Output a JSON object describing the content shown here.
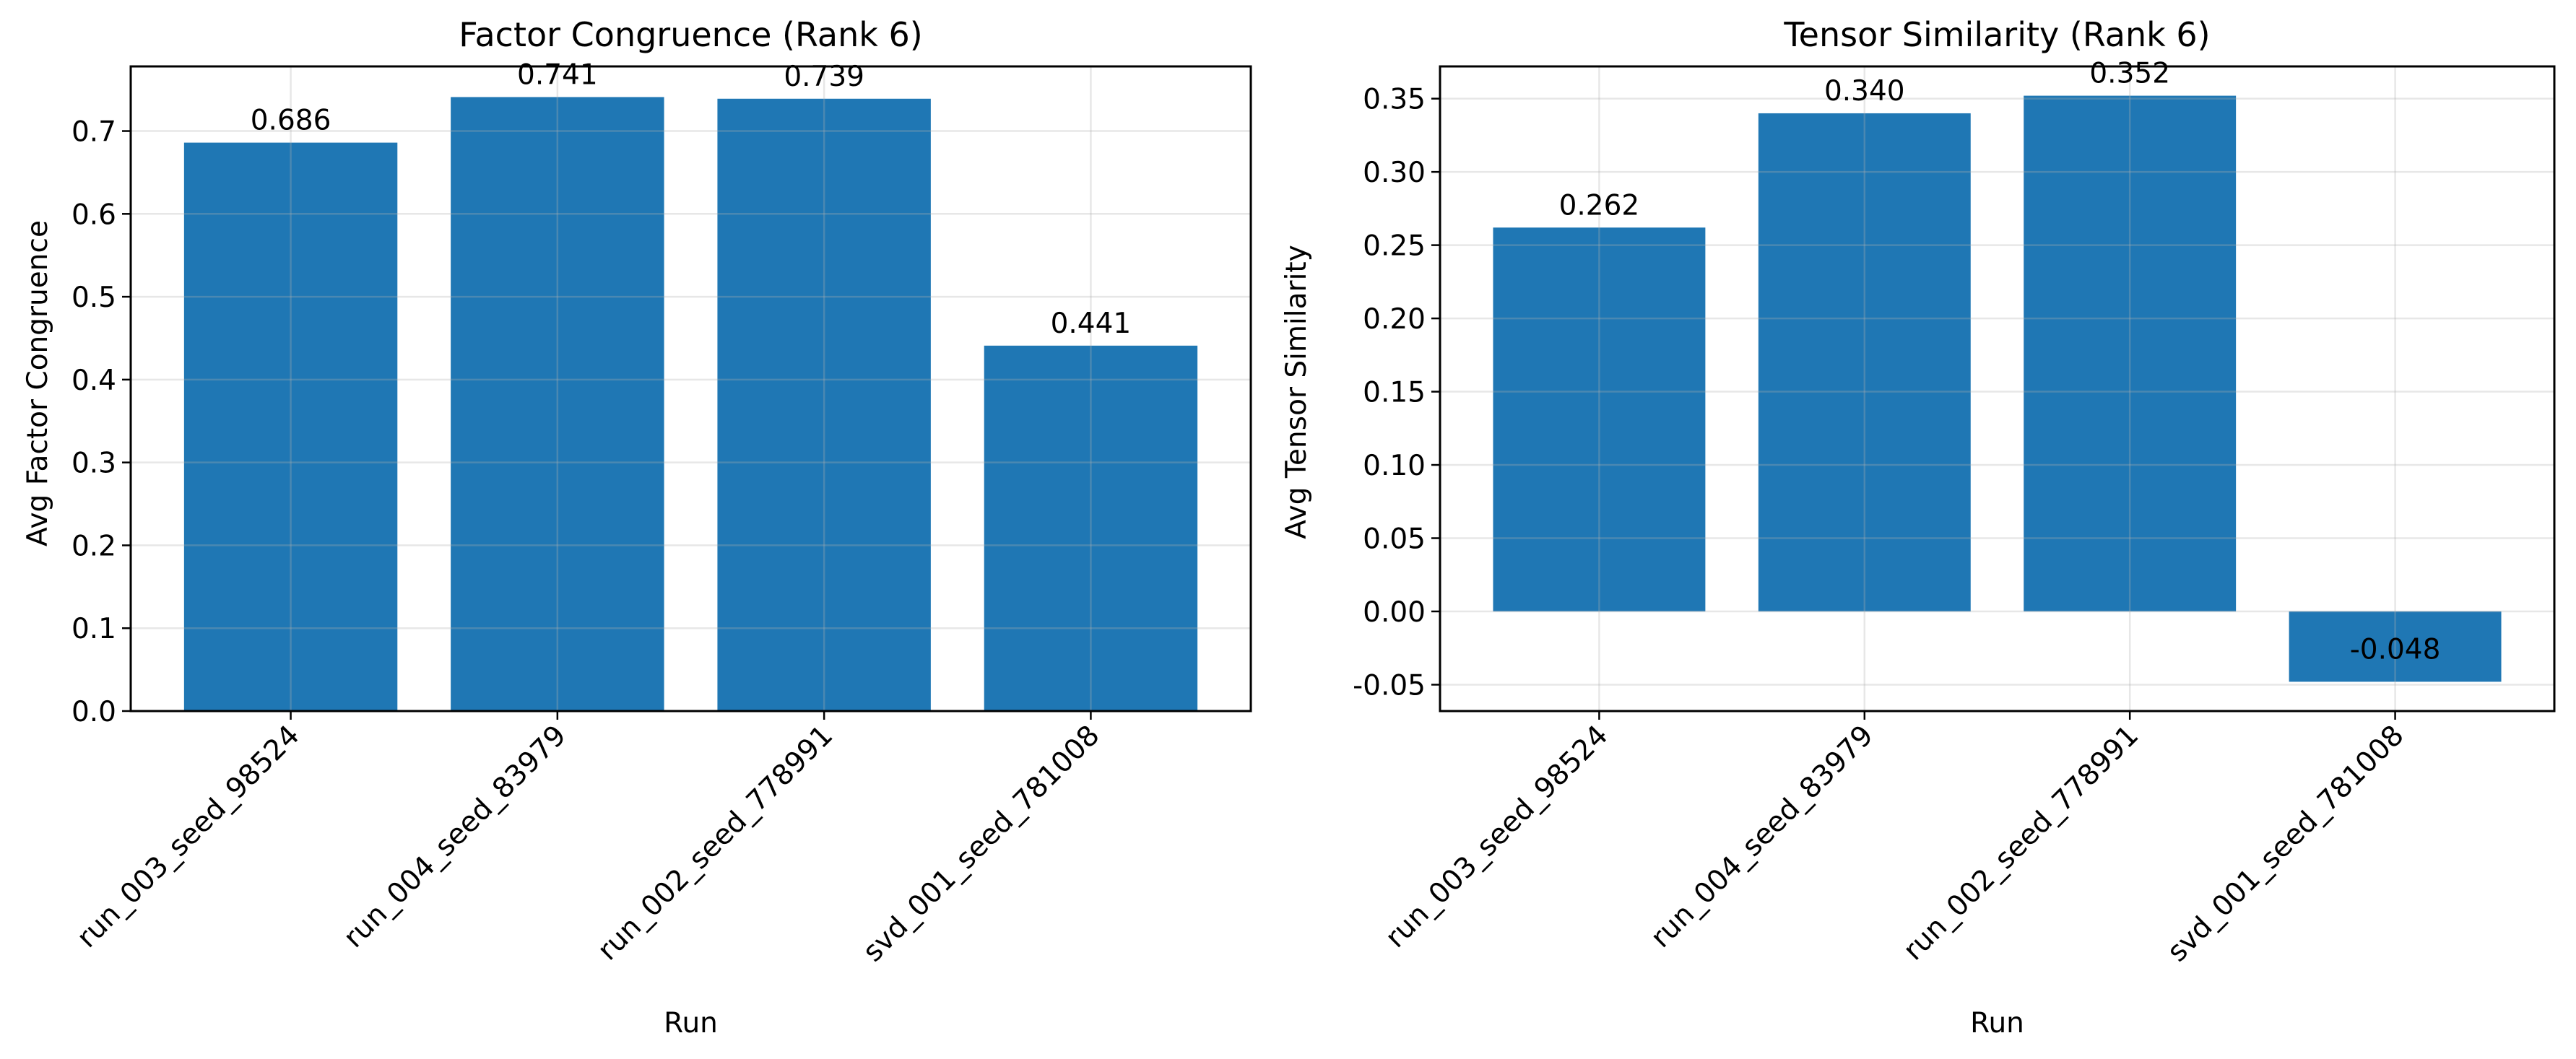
{
  "colors": {
    "bar": "#1f77b4"
  },
  "chart_data": [
    {
      "type": "bar",
      "title": "Factor Congruence (Rank 6)",
      "xlabel": "Run",
      "ylabel": "Avg Factor Congruence",
      "categories": [
        "run_003_seed_98524",
        "run_004_seed_83979",
        "run_002_seed_778991",
        "svd_001_seed_781008"
      ],
      "values": [
        0.686,
        0.741,
        0.739,
        0.441
      ],
      "data_labels": [
        "0.686",
        "0.741",
        "0.739",
        "0.441"
      ],
      "ylim": [
        0,
        0.778
      ],
      "yticks": [
        0.0,
        0.1,
        0.2,
        0.3,
        0.4,
        0.5,
        0.6,
        0.7
      ],
      "ytick_labels": [
        "0.0",
        "0.1",
        "0.2",
        "0.3",
        "0.4",
        "0.5",
        "0.6",
        "0.7"
      ],
      "grid": true
    },
    {
      "type": "bar",
      "title": "Tensor Similarity (Rank 6)",
      "xlabel": "Run",
      "ylabel": "Avg Tensor Similarity",
      "categories": [
        "run_003_seed_98524",
        "run_004_seed_83979",
        "run_002_seed_778991",
        "svd_001_seed_781008"
      ],
      "values": [
        0.262,
        0.34,
        0.352,
        -0.048
      ],
      "data_labels": [
        "0.262",
        "0.340",
        "0.352",
        "-0.048"
      ],
      "ylim": [
        -0.068,
        0.372
      ],
      "yticks": [
        -0.05,
        0.0,
        0.05,
        0.1,
        0.15,
        0.2,
        0.25,
        0.3,
        0.35
      ],
      "ytick_labels": [
        "-0.05",
        "0.00",
        "0.05",
        "0.10",
        "0.15",
        "0.20",
        "0.25",
        "0.30",
        "0.35"
      ],
      "grid": true
    }
  ]
}
